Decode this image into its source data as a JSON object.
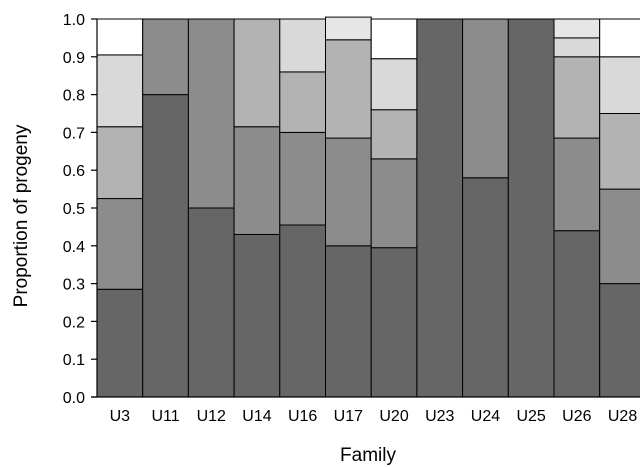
{
  "chart_data": {
    "type": "bar",
    "stacked": true,
    "normalized": true,
    "categories": [
      "U3",
      "U11",
      "U12",
      "U14",
      "U16",
      "U17",
      "U20",
      "U23",
      "U24",
      "U25",
      "U26",
      "U28"
    ],
    "series": [
      {
        "values": [
          0.285,
          0.8,
          0.5,
          0.43,
          0.455,
          0.4,
          0.395,
          1.0,
          0.58,
          1.0,
          0.44,
          0.3
        ]
      },
      {
        "values": [
          0.24,
          0.2,
          0.5,
          0.285,
          0.245,
          0.285,
          0.235,
          0.0,
          0.42,
          0.0,
          0.245,
          0.25
        ]
      },
      {
        "values": [
          0.19,
          0.0,
          0.0,
          0.285,
          0.16,
          0.26,
          0.13,
          0.0,
          0.0,
          0.0,
          0.215,
          0.2
        ]
      },
      {
        "values": [
          0.19,
          0.0,
          0.0,
          0.0,
          0.14,
          0.0,
          0.135,
          0.0,
          0.0,
          0.0,
          0.05,
          0.15
        ]
      },
      {
        "values": [
          0.095,
          0.0,
          0.0,
          0.0,
          0.0,
          0.0,
          0.105,
          0.0,
          0.0,
          0.0,
          0.0,
          0.1
        ]
      },
      {
        "values": [
          0.0,
          0.0,
          0.0,
          0.0,
          0.0,
          0.06,
          0.0,
          0.0,
          0.0,
          0.0,
          0.05,
          0.0
        ]
      }
    ],
    "series_colors": [
      "#666666",
      "#8c8c8c",
      "#b3b3b3",
      "#d9d9d9",
      "#ffffff",
      "#e6e6e6"
    ],
    "yticks": [
      "0.0",
      "0.1",
      "0.2",
      "0.3",
      "0.4",
      "0.5",
      "0.6",
      "0.7",
      "0.8",
      "0.9",
      "1.0"
    ],
    "ylim": [
      0,
      1
    ],
    "xlabel": "Family",
    "ylabel": "Proportion of progeny",
    "grid": false,
    "legend": false
  }
}
